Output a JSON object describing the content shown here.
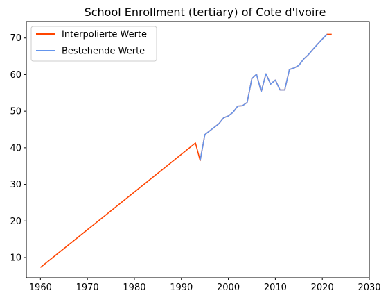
{
  "chart_data": {
    "type": "line",
    "title": "School Enrollment (tertiary) of Cote d'Ivoire",
    "xlabel": "",
    "ylabel": "",
    "xlim": [
      1957,
      2030
    ],
    "ylim": [
      4.5,
      74.5
    ],
    "xticks": [
      1960,
      1970,
      1980,
      1990,
      2000,
      2010,
      2020,
      2030
    ],
    "yticks": [
      10,
      20,
      30,
      40,
      50,
      60,
      70
    ],
    "grid": false,
    "legend_position": "top-left",
    "series": [
      {
        "name": "Interpolierte Werte",
        "color": "#ff4500",
        "x": [
          1960,
          1993,
          1994,
          1995,
          1996,
          1997,
          1998,
          1999,
          2000,
          2001,
          2002,
          2003,
          2004,
          2005,
          2006,
          2007,
          2008,
          2009,
          2010,
          2011,
          2012,
          2013,
          2014,
          2015,
          2016,
          2017,
          2018,
          2019,
          2020,
          2021,
          2022
        ],
        "values": [
          7.3,
          41.3,
          36.5,
          43.6,
          44.6,
          45.6,
          46.6,
          48.2,
          48.7,
          49.7,
          51.4,
          51.5,
          52.4,
          58.9,
          60.1,
          55.3,
          60.2,
          57.4,
          58.5,
          55.8,
          55.8,
          61.4,
          61.8,
          62.5,
          64.2,
          65.4,
          66.9,
          68.3,
          69.7,
          71.0,
          71.0
        ]
      },
      {
        "name": "Bestehende Werte",
        "color": "#6495ed",
        "x": [
          1994,
          1995,
          1996,
          1997,
          1998,
          1999,
          2000,
          2001,
          2002,
          2003,
          2004,
          2005,
          2006,
          2007,
          2008,
          2009,
          2010,
          2011,
          2012,
          2013,
          2014,
          2015,
          2016,
          2017,
          2018,
          2019,
          2020,
          2021
        ],
        "values": [
          36.5,
          43.6,
          44.6,
          45.6,
          46.6,
          48.2,
          48.7,
          49.7,
          51.4,
          51.5,
          52.4,
          58.9,
          60.1,
          55.3,
          60.2,
          57.4,
          58.5,
          55.8,
          55.8,
          61.4,
          61.8,
          62.5,
          64.2,
          65.4,
          66.9,
          68.3,
          69.7,
          71.0
        ]
      }
    ]
  }
}
